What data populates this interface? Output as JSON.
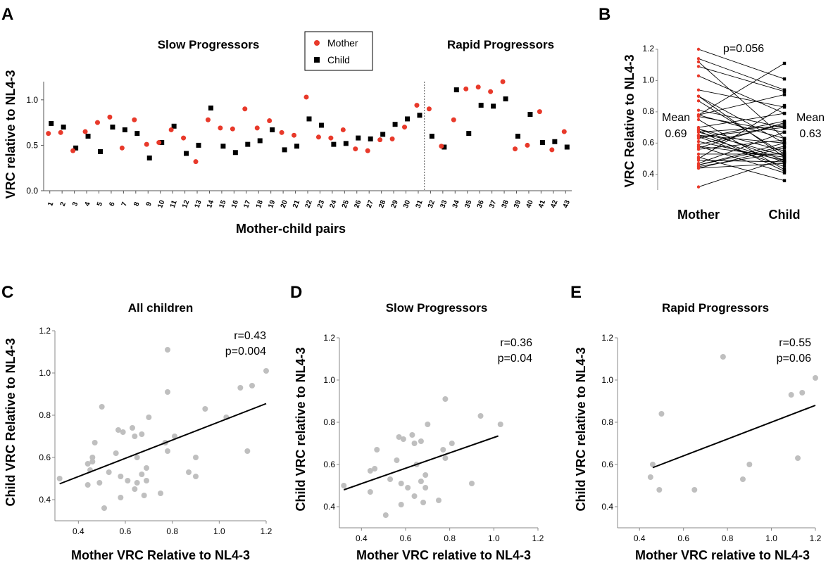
{
  "chart_data": [
    {
      "panel": "A",
      "type": "scatter",
      "ylabel": "VRC relative to NL4-3",
      "xlabel": "Mother-child pairs",
      "group_labels": [
        "Slow Progressors",
        "Rapid Progressors"
      ],
      "divider_after": 31,
      "ylim": [
        0.0,
        1.2
      ],
      "yticks": [
        "0.0",
        "0.5",
        "1.0"
      ],
      "colors": {
        "Mother": "#e8392a",
        "Child": "#000000"
      },
      "categories": [
        "1",
        "2",
        "3",
        "4",
        "5",
        "6",
        "7",
        "8",
        "9",
        "10",
        "11",
        "12",
        "13",
        "14",
        "15",
        "16",
        "17",
        "18",
        "19",
        "20",
        "21",
        "22",
        "23",
        "24",
        "25",
        "26",
        "27",
        "28",
        "29",
        "30",
        "31",
        "32",
        "33",
        "34",
        "35",
        "36",
        "37",
        "38",
        "39",
        "40",
        "41",
        "42",
        "43"
      ],
      "series": [
        {
          "name": "Mother",
          "marker": "circle",
          "values": [
            0.63,
            0.64,
            0.44,
            0.65,
            0.75,
            0.81,
            0.47,
            0.78,
            0.51,
            0.53,
            0.67,
            0.58,
            0.32,
            0.78,
            0.69,
            0.68,
            0.9,
            0.69,
            0.77,
            0.64,
            0.61,
            1.03,
            0.59,
            0.58,
            0.67,
            0.46,
            0.44,
            0.56,
            0.57,
            0.7,
            0.94,
            0.9,
            0.49,
            0.78,
            1.12,
            1.14,
            1.09,
            1.2,
            0.46,
            0.5,
            0.87,
            0.45,
            0.65
          ]
        },
        {
          "name": "Child",
          "marker": "square",
          "values": [
            0.74,
            0.7,
            0.47,
            0.6,
            0.43,
            0.7,
            0.67,
            0.63,
            0.36,
            0.53,
            0.71,
            0.41,
            0.5,
            0.91,
            0.49,
            0.42,
            0.51,
            0.55,
            0.67,
            0.45,
            0.49,
            0.79,
            0.72,
            0.51,
            0.52,
            0.58,
            0.57,
            0.62,
            0.73,
            0.79,
            0.83,
            0.6,
            0.48,
            1.11,
            0.63,
            0.94,
            0.93,
            1.01,
            0.6,
            0.84,
            0.53,
            0.54,
            0.48
          ]
        }
      ]
    },
    {
      "panel": "B",
      "type": "line",
      "ylabel": "VRC Relative to NL4-3",
      "categories": [
        "Mother",
        "Child"
      ],
      "ylim": [
        0.3,
        1.2
      ],
      "yticks": [
        "0.4",
        "0.6",
        "0.8",
        "1.0",
        "1.2"
      ],
      "pvalue": "p=0.056",
      "mean_mother": [
        "Mean",
        "0.69"
      ],
      "mean_child": [
        "Mean",
        "0.63"
      ]
    },
    {
      "panel": "C",
      "type": "scatter",
      "title": "All children",
      "xlabel": "Mother VRC Relative to NL4-3",
      "ylabel": "Child VRC Relative to NL4-3",
      "xlim": [
        0.3,
        1.2
      ],
      "ylim": [
        0.3,
        1.2
      ],
      "xticks": [
        "0.4",
        "0.6",
        "0.8",
        "1.0",
        "1.2"
      ],
      "yticks": [
        "0.4",
        "0.6",
        "0.8",
        "1.0",
        "1.2"
      ],
      "r": "r=0.43",
      "p": "p=0.004",
      "fit": {
        "x0": 0.32,
        "y0": 0.475,
        "x1": 1.2,
        "y1": 0.855
      }
    },
    {
      "panel": "D",
      "type": "scatter",
      "title": "Slow Progressors",
      "xlabel": "Mother VRC relative to NL4-3",
      "ylabel": "Child VRC relative to NL4-3",
      "xlim": [
        0.3,
        1.2
      ],
      "ylim": [
        0.3,
        1.2
      ],
      "xticks": [
        "0.4",
        "0.6",
        "0.8",
        "1.0",
        "1.2"
      ],
      "yticks": [
        "0.4",
        "0.6",
        "0.8",
        "1.0",
        "1.2"
      ],
      "r": "r=0.36",
      "p": "p=0.04",
      "fit": {
        "x0": 0.32,
        "y0": 0.48,
        "x1": 1.02,
        "y1": 0.735
      }
    },
    {
      "panel": "E",
      "type": "scatter",
      "title": "Rapid Progressors",
      "xlabel": "Mother VRC relative to NL4-3",
      "ylabel": "Child VRC relative to NL4-3",
      "xlim": [
        0.3,
        1.2
      ],
      "ylim": [
        0.3,
        1.2
      ],
      "xticks": [
        "0.4",
        "0.6",
        "0.8",
        "1.0",
        "1.2"
      ],
      "yticks": [
        "0.4",
        "0.6",
        "0.8",
        "1.0",
        "1.2"
      ],
      "r": "r=0.55",
      "p": "p=0.06",
      "fit": {
        "x0": 0.46,
        "y0": 0.585,
        "x1": 1.2,
        "y1": 0.88
      }
    }
  ]
}
